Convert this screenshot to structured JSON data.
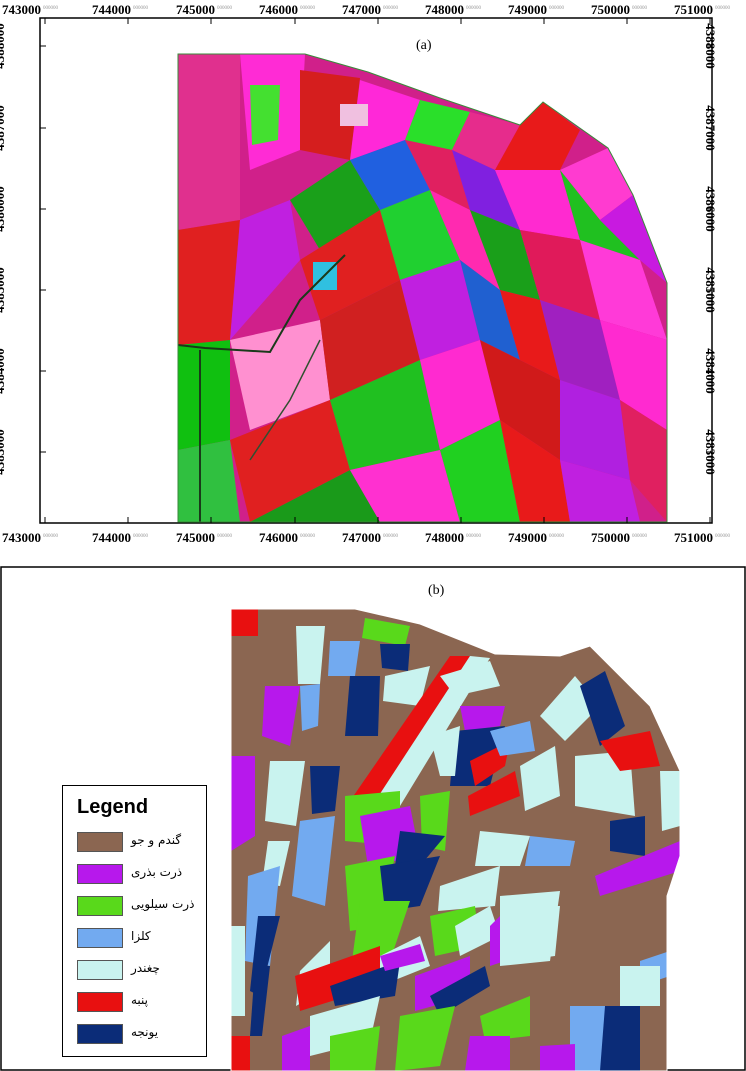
{
  "panel_a": {
    "caption": "(a)",
    "x_ticks": [
      "743000",
      "744000",
      "745000",
      "746000",
      "747000",
      "748000",
      "749000",
      "750000",
      "751000"
    ],
    "y_ticks": [
      "4388000",
      "4387000",
      "4386000",
      "4385000",
      "4384000",
      "4383000"
    ],
    "tick_suffix": "000000"
  },
  "panel_b": {
    "caption": "(b)",
    "legend": {
      "title": "Legend",
      "items": [
        {
          "label": "گندم و جو",
          "color": "#8b6651"
        },
        {
          "label": "ذرت بذری",
          "color": "#b718ec"
        },
        {
          "label": "ذرت سیلویی",
          "color": "#59d91b"
        },
        {
          "label": "کلزا",
          "color": "#72aaf0"
        },
        {
          "label": "چغندر",
          "color": "#c9f3ef"
        },
        {
          "label": "پنبه",
          "color": "#e81010"
        },
        {
          "label": "یونجه",
          "color": "#0b2c78"
        }
      ]
    }
  }
}
